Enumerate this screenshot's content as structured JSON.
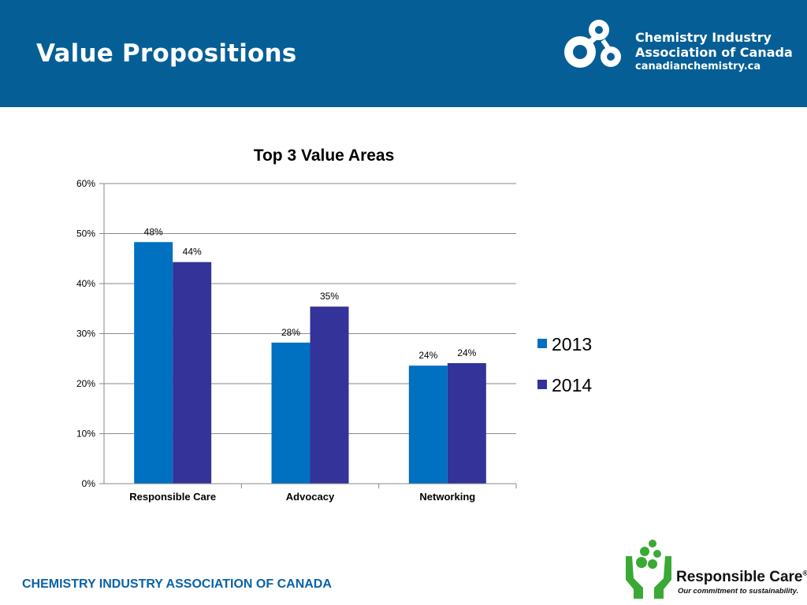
{
  "slide": {
    "title": "Value Propositions",
    "footer": "CHEMISTRY INDUSTRY ASSOCIATION OF CANADA"
  },
  "header_logo": {
    "line1": "Chemistry Industry",
    "line2": "Association of Canada",
    "url": "canadianchemistry.ca"
  },
  "responsible_care": {
    "name": "Responsible Care",
    "registered_mark": "®",
    "tagline": "Our commitment to sustainability."
  },
  "colors": {
    "header_bg": "#055f96",
    "series_2013": "#0070c0",
    "series_2014": "#333399",
    "rc_green": "#3aa935",
    "footer_text": "#0a62a8"
  },
  "chart_data": {
    "type": "bar",
    "title": "Top 3 Value Areas",
    "xlabel": "",
    "ylabel": "",
    "categories": [
      "Responsible Care",
      "Advocacy",
      "Networking"
    ],
    "series": [
      {
        "name": "2013",
        "values": [
          48.3,
          28.2,
          23.6
        ],
        "labels": [
          "48%",
          "28%",
          "24%"
        ]
      },
      {
        "name": "2014",
        "values": [
          44.3,
          35.4,
          24.1
        ],
        "labels": [
          "44%",
          "35%",
          "24%"
        ]
      }
    ],
    "ylim": [
      0,
      60
    ],
    "yticks": [
      0,
      10,
      20,
      30,
      40,
      50,
      60
    ],
    "ytick_labels": [
      "0%",
      "10%",
      "20%",
      "30%",
      "40%",
      "50%",
      "60%"
    ],
    "grid": true,
    "legend": "right"
  }
}
